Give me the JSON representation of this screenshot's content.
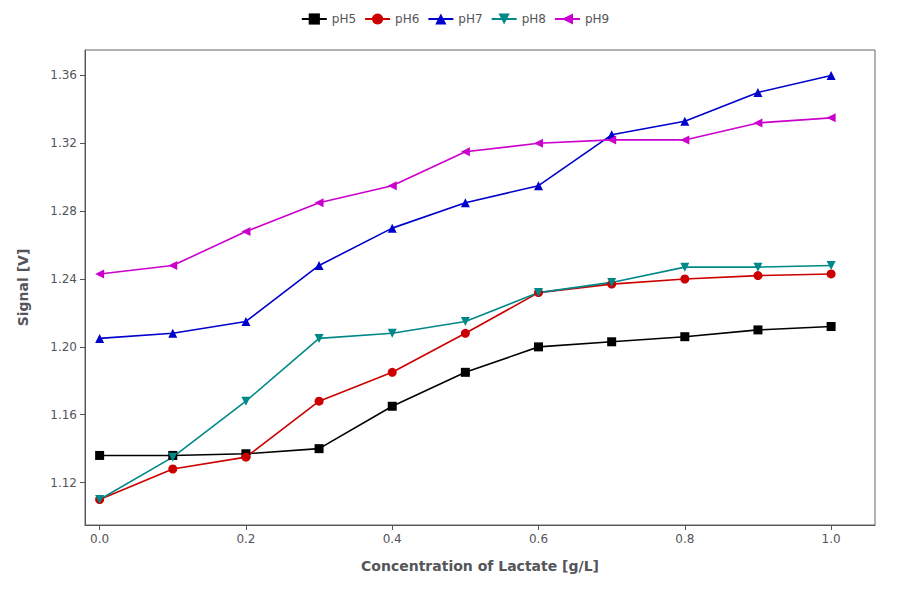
{
  "chart_data": {
    "type": "line",
    "xlabel": "Concentration of Lactate [g/L]",
    "ylabel": "Signal [V]",
    "x": [
      0.0,
      0.1,
      0.2,
      0.3,
      0.4,
      0.5,
      0.6,
      0.7,
      0.8,
      0.9,
      1.0
    ],
    "series": [
      {
        "name": "pH5",
        "color": "#000000",
        "marker": "square",
        "values": [
          1.136,
          1.136,
          1.137,
          1.14,
          1.165,
          1.185,
          1.2,
          1.203,
          1.206,
          1.21,
          1.212
        ]
      },
      {
        "name": "pH6",
        "color": "#cc0000",
        "marker": "circle",
        "values": [
          1.11,
          1.128,
          1.135,
          1.168,
          1.185,
          1.208,
          1.232,
          1.237,
          1.24,
          1.242,
          1.243
        ]
      },
      {
        "name": "pH7",
        "color": "#0000cc",
        "marker": "triangle-up",
        "values": [
          1.205,
          1.208,
          1.215,
          1.248,
          1.27,
          1.285,
          1.295,
          1.325,
          1.333,
          1.35,
          1.36
        ]
      },
      {
        "name": "pH8",
        "color": "#008888",
        "marker": "triangle-down",
        "values": [
          1.11,
          1.135,
          1.168,
          1.205,
          1.208,
          1.215,
          1.232,
          1.238,
          1.247,
          1.247,
          1.248
        ]
      },
      {
        "name": "pH9",
        "color": "#cc00cc",
        "marker": "triangle-left",
        "values": [
          1.243,
          1.248,
          1.268,
          1.285,
          1.295,
          1.315,
          1.32,
          1.322,
          1.322,
          1.332,
          1.335
        ]
      }
    ],
    "xlim": [
      -0.02,
      1.06
    ],
    "ylim": [
      1.095,
      1.375
    ],
    "xticks": [
      {
        "value": 0.0,
        "label": "0.0"
      },
      0.2,
      0.4,
      0.6,
      0.8,
      {
        "value": 1.0,
        "label": "1.0"
      }
    ],
    "yticks": [
      1.12,
      1.16,
      {
        "value": 1.2,
        "label": "1.20"
      },
      1.24,
      1.28,
      1.32,
      1.36
    ],
    "grid": false,
    "legend": "top"
  }
}
